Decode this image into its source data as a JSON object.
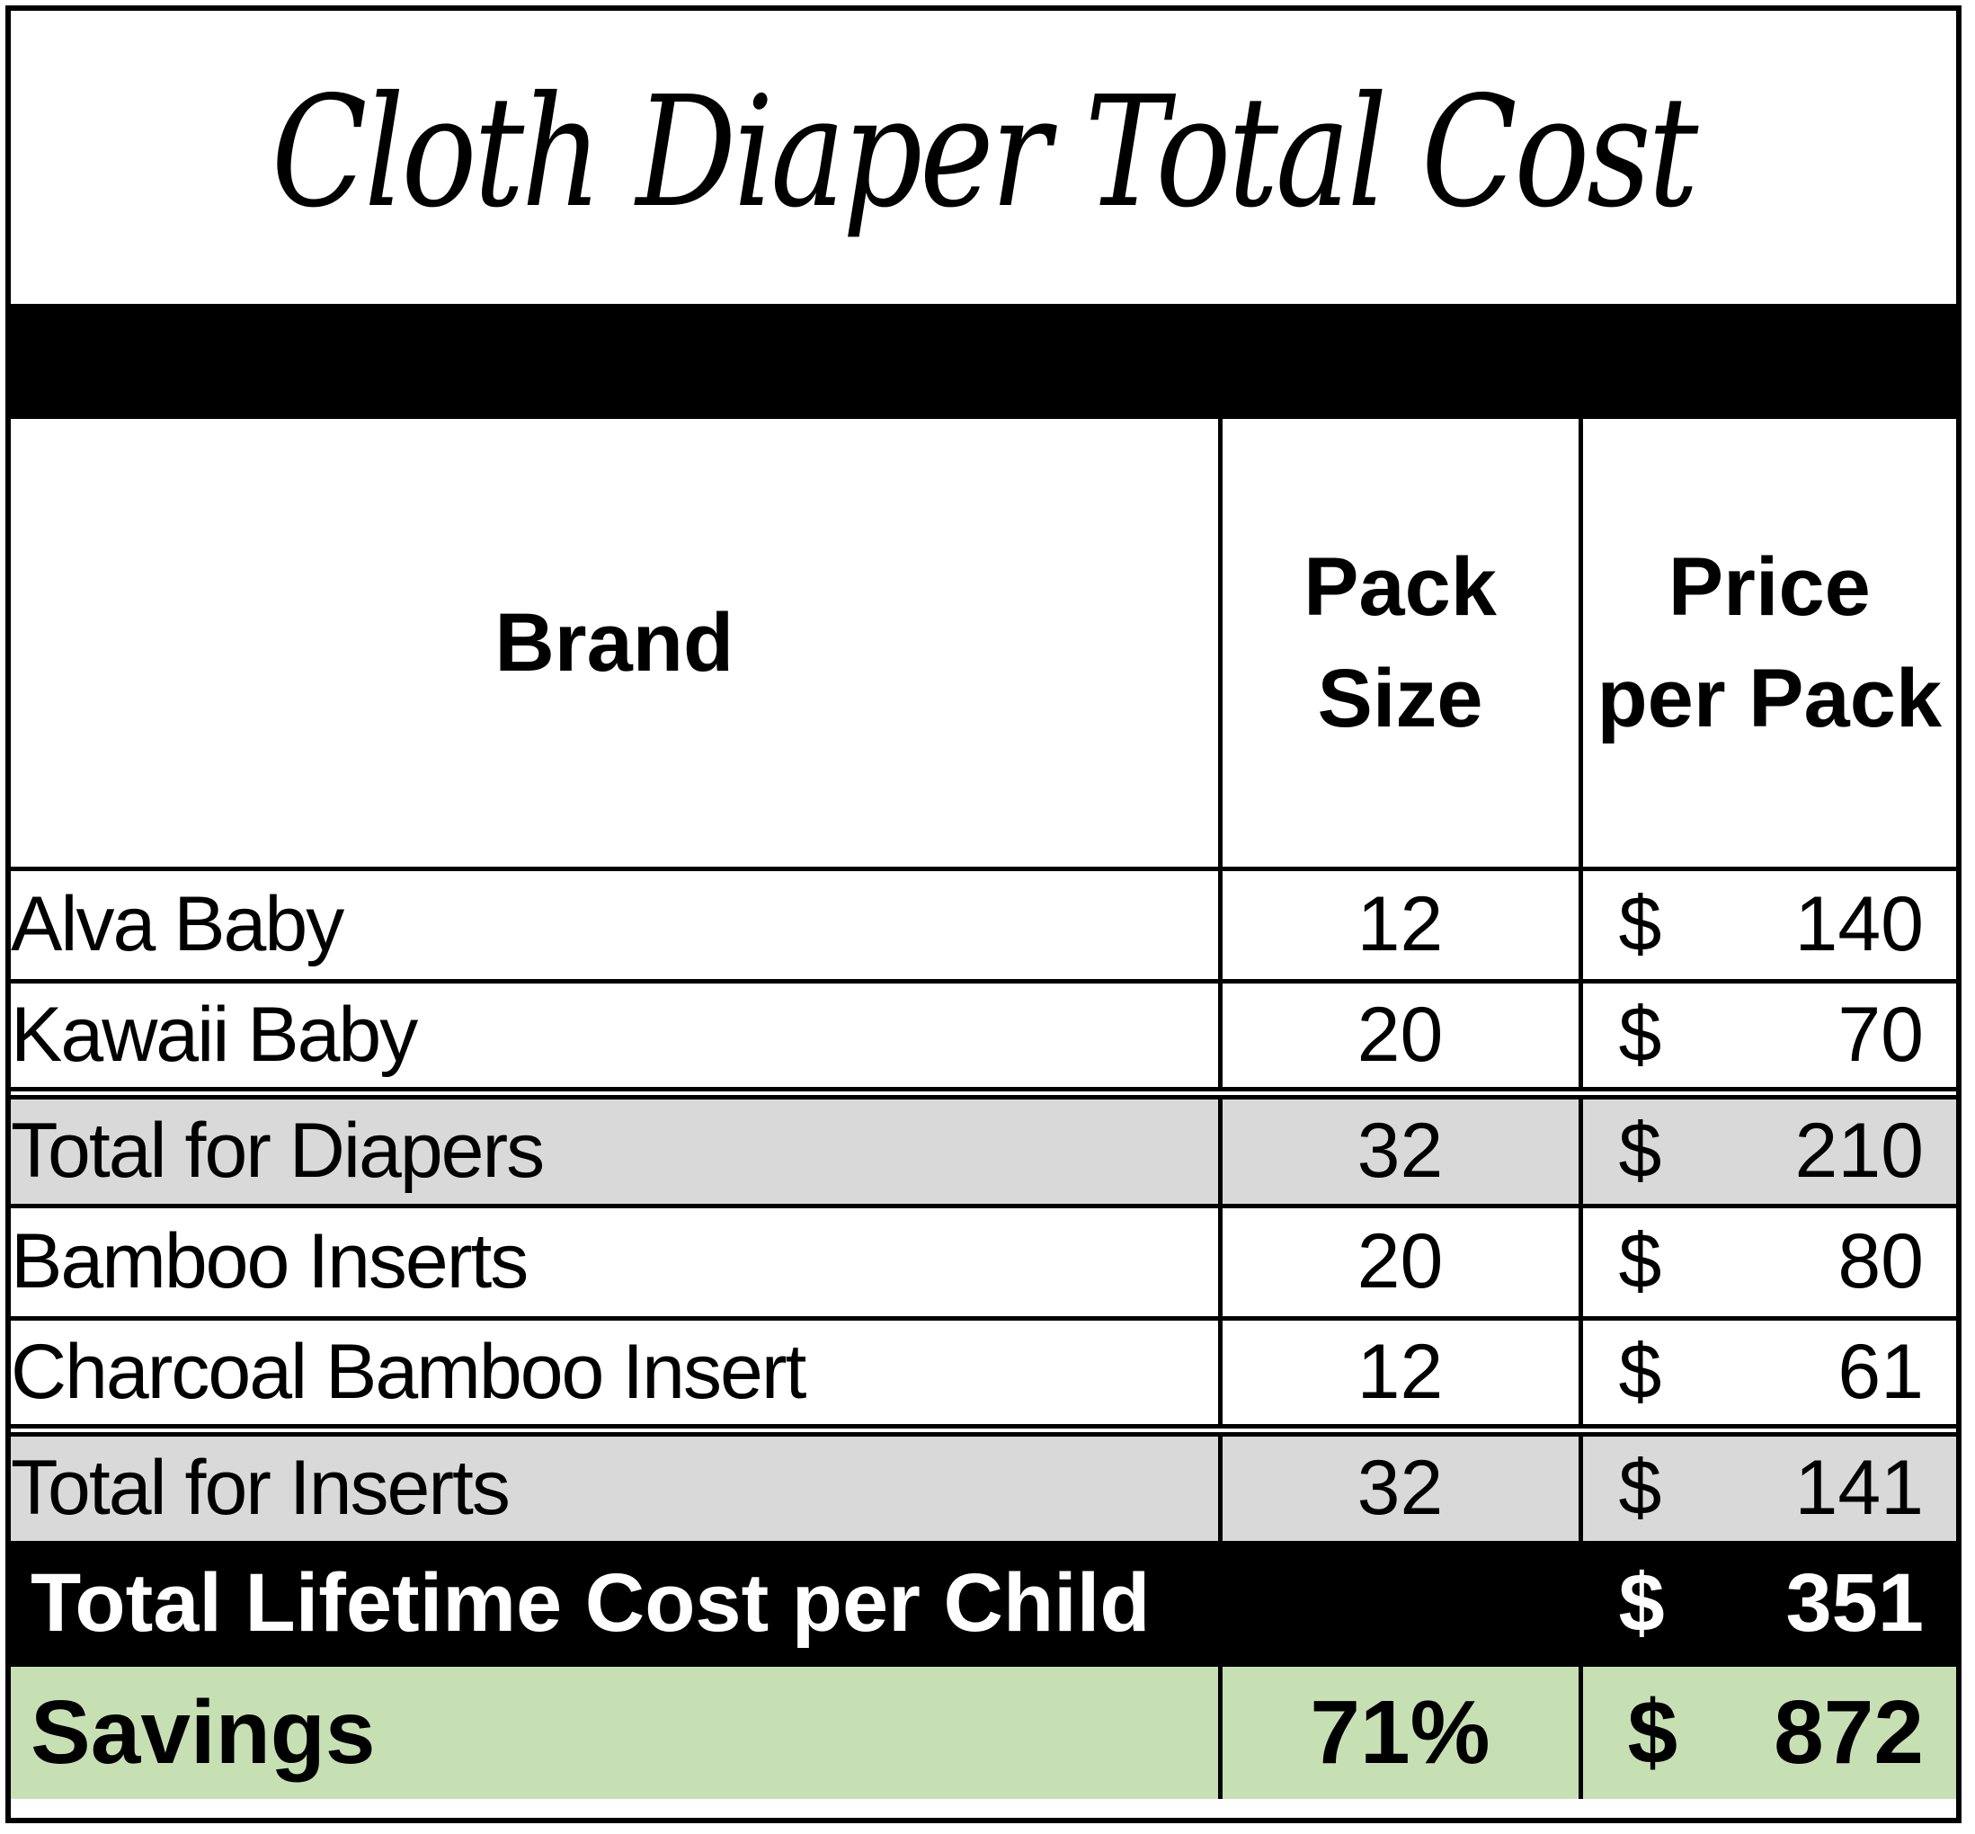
{
  "title": "Cloth Diaper Total Cost",
  "headers": {
    "brand": "Brand",
    "pack_size_line1": "Pack",
    "pack_size_line2": "Size",
    "price_line1": "Price",
    "price_line2": "per Pack"
  },
  "rows": [
    {
      "brand": "Alva Baby",
      "pack_size": "12",
      "currency": "$",
      "price": "140"
    },
    {
      "brand": "Kawaii Baby",
      "pack_size": "20",
      "currency": "$",
      "price": "70"
    },
    {
      "brand": "Total for Diapers",
      "pack_size": "32",
      "currency": "$",
      "price": "210"
    },
    {
      "brand": "Bamboo Inserts",
      "pack_size": "20",
      "currency": "$",
      "price": "80"
    },
    {
      "brand": "Charcoal Bamboo Insert",
      "pack_size": "12",
      "currency": "$",
      "price": "61"
    },
    {
      "brand": "Total for Inserts",
      "pack_size": "32",
      "currency": "$",
      "price": "141"
    }
  ],
  "total": {
    "label": "Total Lifetime Cost per Child",
    "currency": "$",
    "value": "351"
  },
  "savings": {
    "label": "Savings",
    "percent": "71%",
    "currency": "$",
    "value": "872"
  },
  "colors": {
    "subtotal_fill": "#d9d9d9",
    "savings_fill": "#c6e0b4",
    "band_fill": "#000000"
  }
}
